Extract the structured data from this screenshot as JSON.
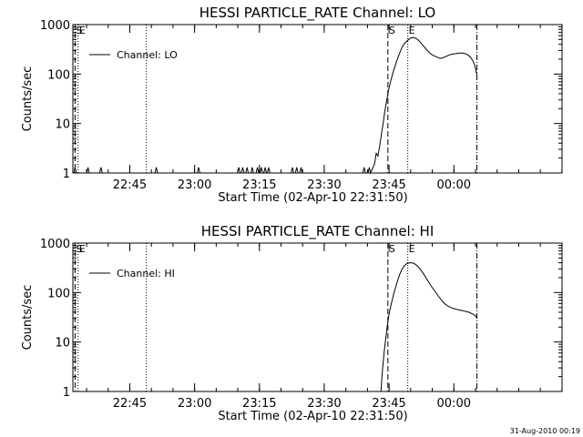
{
  "footer": {
    "date_stamp": "31-Aug-2010 00:19"
  },
  "chart_data": [
    {
      "type": "line",
      "title": "HESSI PARTICLE_RATE Channel: LO",
      "xlabel": "Start Time (02-Apr-10 22:31:50)",
      "ylabel": "Counts/sec",
      "x_units": "minutes after 22:31:50",
      "xlim": [
        0,
        113.2
      ],
      "ylim": [
        1,
        1000
      ],
      "yscale": "log",
      "x_ticks": [
        {
          "x": 13.17,
          "label": "22:45"
        },
        {
          "x": 28.17,
          "label": "23:00"
        },
        {
          "x": 43.17,
          "label": "23:15"
        },
        {
          "x": 58.17,
          "label": "23:30"
        },
        {
          "x": 73.17,
          "label": "23:45"
        },
        {
          "x": 88.17,
          "label": "00:00"
        }
      ],
      "y_ticks": [
        {
          "y": 1,
          "label": "1"
        },
        {
          "y": 10,
          "label": "10"
        },
        {
          "y": 100,
          "label": "100"
        },
        {
          "y": 1000,
          "label": "1000"
        }
      ],
      "legend": {
        "entries": [
          "Channel: LO"
        ],
        "position": "top-left"
      },
      "vlines": [
        {
          "x": 0.5,
          "style": "dashed",
          "label": "S"
        },
        {
          "x": 1.2,
          "style": "dotted",
          "label": "E"
        },
        {
          "x": 17.0,
          "style": "dotted",
          "label": ""
        },
        {
          "x": 72.9,
          "style": "dashed",
          "label": "S"
        },
        {
          "x": 77.5,
          "style": "dotted",
          "label": "E"
        },
        {
          "x": 93.5,
          "style": "dashdot",
          "label": ""
        }
      ],
      "series": [
        {
          "name": "Channel: LO",
          "points": [
            [
              0.2,
              1.0
            ],
            [
              0.5,
              1.3
            ],
            [
              0.8,
              1.0
            ],
            [
              3.2,
              1.0
            ],
            [
              3.5,
              1.3
            ],
            [
              3.8,
              1.0
            ],
            [
              6.2,
              1.0
            ],
            [
              6.5,
              1.3
            ],
            [
              6.8,
              1.0
            ],
            [
              19.0,
              1.0
            ],
            [
              19.3,
              1.3
            ],
            [
              19.6,
              1.0
            ],
            [
              28.8,
              1.0
            ],
            [
              29.1,
              1.3
            ],
            [
              29.4,
              1.0
            ],
            [
              38.1,
              1.0
            ],
            [
              38.4,
              1.3
            ],
            [
              38.7,
              1.0
            ],
            [
              39.0,
              1.0
            ],
            [
              39.3,
              1.3
            ],
            [
              39.6,
              1.0
            ],
            [
              40.0,
              1.0
            ],
            [
              40.3,
              1.3
            ],
            [
              40.6,
              1.0
            ],
            [
              41.2,
              1.0
            ],
            [
              41.5,
              1.3
            ],
            [
              41.8,
              1.0
            ],
            [
              42.4,
              1.0
            ],
            [
              42.7,
              1.3
            ],
            [
              43.0,
              1.0
            ],
            [
              43.3,
              1.0
            ],
            [
              43.6,
              1.3
            ],
            [
              43.9,
              1.0
            ],
            [
              44.2,
              1.0
            ],
            [
              44.5,
              1.3
            ],
            [
              44.8,
              1.0
            ],
            [
              45.0,
              1.0
            ],
            [
              45.3,
              1.3
            ],
            [
              45.6,
              1.0
            ],
            [
              50.5,
              1.0
            ],
            [
              50.8,
              1.3
            ],
            [
              51.1,
              1.0
            ],
            [
              51.5,
              1.0
            ],
            [
              51.8,
              1.3
            ],
            [
              52.1,
              1.0
            ],
            [
              52.5,
              1.0
            ],
            [
              52.8,
              1.3
            ],
            [
              53.1,
              1.0
            ],
            [
              67.1,
              1.0
            ],
            [
              67.4,
              1.3
            ],
            [
              67.7,
              1.0
            ],
            [
              68.3,
              1.0
            ],
            [
              68.6,
              1.3
            ],
            [
              68.9,
              1.0
            ],
            [
              69.3,
              1.2
            ],
            [
              69.8,
              1.5
            ],
            [
              70.2,
              2.5
            ],
            [
              70.6,
              2.2
            ],
            [
              71.0,
              3.5
            ],
            [
              71.4,
              6
            ],
            [
              71.8,
              10
            ],
            [
              72.2,
              18
            ],
            [
              72.6,
              28
            ],
            [
              73.0,
              45
            ],
            [
              73.5,
              70
            ],
            [
              74.0,
              100
            ],
            [
              74.5,
              140
            ],
            [
              75.0,
              190
            ],
            [
              75.5,
              250
            ],
            [
              76.0,
              320
            ],
            [
              76.5,
              390
            ],
            [
              77.0,
              440
            ],
            [
              77.5,
              480
            ],
            [
              78.0,
              520
            ],
            [
              78.5,
              550
            ],
            [
              79.0,
              540
            ],
            [
              79.5,
              520
            ],
            [
              80.0,
              480
            ],
            [
              80.5,
              430
            ],
            [
              81.0,
              380
            ],
            [
              81.5,
              340
            ],
            [
              82.0,
              300
            ],
            [
              82.5,
              270
            ],
            [
              83.0,
              250
            ],
            [
              83.5,
              235
            ],
            [
              84.0,
              225
            ],
            [
              84.5,
              215
            ],
            [
              85.0,
              208
            ],
            [
              85.5,
              210
            ],
            [
              86.0,
              220
            ],
            [
              86.5,
              230
            ],
            [
              87.0,
              240
            ],
            [
              87.5,
              250
            ],
            [
              88.0,
              255
            ],
            [
              88.5,
              258
            ],
            [
              89.0,
              262
            ],
            [
              89.5,
              265
            ],
            [
              90.0,
              265
            ],
            [
              90.5,
              262
            ],
            [
              91.0,
              255
            ],
            [
              91.5,
              240
            ],
            [
              92.0,
              220
            ],
            [
              92.5,
              190
            ],
            [
              93.0,
              150
            ],
            [
              93.5,
              95
            ]
          ]
        }
      ]
    },
    {
      "type": "line",
      "title": "HESSI PARTICLE_RATE Channel: HI",
      "xlabel": "Start Time (02-Apr-10 22:31:50)",
      "ylabel": "Counts/sec",
      "x_units": "minutes after 22:31:50",
      "xlim": [
        0,
        113.2
      ],
      "ylim": [
        1,
        1000
      ],
      "yscale": "log",
      "x_ticks": [
        {
          "x": 13.17,
          "label": "22:45"
        },
        {
          "x": 28.17,
          "label": "23:00"
        },
        {
          "x": 43.17,
          "label": "23:15"
        },
        {
          "x": 58.17,
          "label": "23:30"
        },
        {
          "x": 73.17,
          "label": "23:45"
        },
        {
          "x": 88.17,
          "label": "00:00"
        }
      ],
      "y_ticks": [
        {
          "y": 1,
          "label": "1"
        },
        {
          "y": 10,
          "label": "10"
        },
        {
          "y": 100,
          "label": "100"
        },
        {
          "y": 1000,
          "label": "1000"
        }
      ],
      "legend": {
        "entries": [
          "Channel: HI"
        ],
        "position": "top-left"
      },
      "vlines": [
        {
          "x": 0.5,
          "style": "dashed",
          "label": "S"
        },
        {
          "x": 1.2,
          "style": "dotted",
          "label": "E"
        },
        {
          "x": 17.0,
          "style": "dotted",
          "label": ""
        },
        {
          "x": 72.9,
          "style": "dashed",
          "label": "S"
        },
        {
          "x": 77.5,
          "style": "dotted",
          "label": "E"
        },
        {
          "x": 93.5,
          "style": "dashdot",
          "label": ""
        }
      ],
      "series": [
        {
          "name": "Channel: HI",
          "points": [
            [
              71.3,
              1.0
            ],
            [
              71.6,
              2.5
            ],
            [
              72.0,
              6
            ],
            [
              72.4,
              12
            ],
            [
              72.8,
              22
            ],
            [
              73.2,
              38
            ],
            [
              73.7,
              60
            ],
            [
              74.2,
              90
            ],
            [
              74.7,
              130
            ],
            [
              75.2,
              180
            ],
            [
              75.7,
              240
            ],
            [
              76.2,
              300
            ],
            [
              76.7,
              350
            ],
            [
              77.2,
              380
            ],
            [
              77.7,
              395
            ],
            [
              78.2,
              400
            ],
            [
              78.7,
              395
            ],
            [
              79.2,
              375
            ],
            [
              79.7,
              345
            ],
            [
              80.2,
              310
            ],
            [
              80.7,
              270
            ],
            [
              81.2,
              235
            ],
            [
              81.7,
              200
            ],
            [
              82.2,
              170
            ],
            [
              82.7,
              145
            ],
            [
              83.2,
              125
            ],
            [
              83.7,
              108
            ],
            [
              84.2,
              95
            ],
            [
              84.7,
              82
            ],
            [
              85.2,
              72
            ],
            [
              85.7,
              64
            ],
            [
              86.2,
              58
            ],
            [
              86.7,
              54
            ],
            [
              87.2,
              51
            ],
            [
              87.7,
              49
            ],
            [
              88.2,
              47
            ],
            [
              88.7,
              46
            ],
            [
              89.2,
              45
            ],
            [
              89.7,
              44
            ],
            [
              90.2,
              43
            ],
            [
              90.7,
              42
            ],
            [
              91.2,
              41
            ],
            [
              91.7,
              40
            ],
            [
              92.2,
              38
            ],
            [
              92.7,
              36
            ],
            [
              93.2,
              34
            ],
            [
              93.5,
              30
            ]
          ]
        }
      ]
    }
  ]
}
